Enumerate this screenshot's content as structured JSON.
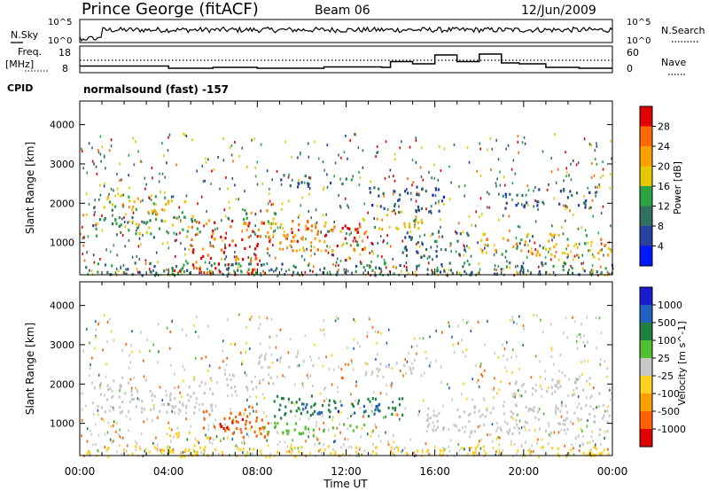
{
  "header": {
    "title": "Prince George (fitACF)",
    "beam": "Beam 06",
    "date": "12/Jun/2009"
  },
  "labels": {
    "nsky": "N.Sky",
    "nsearch": "N.Search",
    "freq": "Freq.",
    "mhz": "[MHz]",
    "nave": "Nave",
    "cpid": "CPID",
    "mode": "normalsound (fast) -157"
  },
  "ticks": {
    "nsky_top": "10^5",
    "nsky_bot": "10^0",
    "nsearch_top": "10^5",
    "nsearch_bot": "10^0",
    "freq_top": "18",
    "freq_bot": "8",
    "nave_top": "60",
    "nave_bot": "0"
  },
  "chart_data": [
    {
      "type": "line",
      "panel": "noise",
      "series": [
        {
          "name": "N.Sky",
          "style": "solid",
          "level": 0.55
        },
        {
          "name": "N.Search",
          "style": "dotted",
          "level": 0.1
        }
      ]
    },
    {
      "type": "line",
      "panel": "frequency",
      "ylim_freq": [
        8,
        18
      ],
      "ylim_nave": [
        0,
        60
      ],
      "series": [
        {
          "name": "Freq. [MHz]",
          "style": "dotted",
          "x": [
            0,
            24
          ],
          "y": [
            12.2,
            12.2
          ]
        },
        {
          "name": "Nave",
          "style": "solid",
          "x": [
            0,
            1,
            4,
            6,
            8,
            11,
            13.6,
            14,
            15,
            16,
            17,
            18,
            19,
            19.8,
            21,
            22.5,
            24
          ],
          "y": [
            15,
            15,
            10,
            12,
            10,
            13,
            12,
            25,
            20,
            40,
            25,
            42,
            22,
            20,
            12,
            10,
            10
          ]
        }
      ]
    },
    {
      "type": "heatmap",
      "title": "",
      "xlabel": "Time UT",
      "ylabel": "Slant Range [km]",
      "xlim": [
        0,
        24
      ],
      "ylim": [
        180,
        4600
      ],
      "x_ticks": [
        "00:00",
        "04:00",
        "08:00",
        "12:00",
        "16:00",
        "20:00",
        "00:00"
      ],
      "y_ticks": [
        1000,
        2000,
        3000,
        4000
      ],
      "colorbar": {
        "label": "Power [dB]",
        "ticks": [
          "28",
          "24",
          "20",
          "16",
          "12",
          "8",
          "4"
        ],
        "colors": [
          "#e00000",
          "#ff6a00",
          "#ffa000",
          "#e5c800",
          "#2aa542",
          "#2f7060",
          "#2840a0",
          "#0018ff"
        ]
      },
      "regions": [
        {
          "t0": 0.2,
          "t1": 24,
          "r0": 180,
          "r1": 520,
          "value": 12
        },
        {
          "t0": 0.5,
          "t1": 5.5,
          "r0": 1150,
          "r1": 1700,
          "value": 14
        },
        {
          "t0": 1.0,
          "t1": 5.0,
          "r0": 1750,
          "r1": 2250,
          "value": 18
        },
        {
          "t0": 5.0,
          "t1": 8.0,
          "r0": 200,
          "r1": 1600,
          "value": 27
        },
        {
          "t0": 7.0,
          "t1": 9.0,
          "r0": 1450,
          "r1": 1900,
          "value": 15
        },
        {
          "t0": 8.0,
          "t1": 13.5,
          "r0": 800,
          "r1": 1600,
          "value": 22
        },
        {
          "t0": 9.5,
          "t1": 12.5,
          "r0": 1150,
          "r1": 1450,
          "value": 27
        },
        {
          "t0": 12.5,
          "t1": 15.5,
          "r0": 1350,
          "r1": 1850,
          "value": 18
        },
        {
          "t0": 14.5,
          "t1": 17.5,
          "r0": 600,
          "r1": 1300,
          "value": 10
        },
        {
          "t0": 18.0,
          "t1": 24.0,
          "r0": 650,
          "r1": 1250,
          "value": 18
        },
        {
          "t0": 9.0,
          "t1": 12.0,
          "r0": 2450,
          "r1": 2750,
          "value": 10
        },
        {
          "t0": 13.0,
          "t1": 16.5,
          "r0": 1800,
          "r1": 2450,
          "value": 9
        },
        {
          "t0": 19.0,
          "t1": 23.0,
          "r0": 1900,
          "r1": 2400,
          "value": 10
        }
      ]
    },
    {
      "type": "heatmap",
      "title": "",
      "xlabel": "Time UT",
      "ylabel": "Slant Range [km]",
      "xlim": [
        0,
        24
      ],
      "ylim": [
        180,
        4600
      ],
      "x_ticks": [
        "00:00",
        "04:00",
        "08:00",
        "12:00",
        "16:00",
        "20:00",
        "00:00"
      ],
      "y_ticks": [
        1000,
        2000,
        3000,
        4000
      ],
      "colorbar": {
        "label": "Velocity [m s^-1]",
        "ticks": [
          "1000",
          "500",
          "100",
          "25",
          "-25",
          "-100",
          "-500",
          "-1000"
        ],
        "colors": [
          "#1a1ad0",
          "#2060c0",
          "#208040",
          "#50c030",
          "#c8c8c8",
          "#ffd020",
          "#ffa000",
          "#ff6000",
          "#e00000"
        ]
      },
      "regions": [
        {
          "t0": 0.5,
          "t1": 6.0,
          "r0": 1300,
          "r1": 2200,
          "value": 0
        },
        {
          "t0": 6.5,
          "t1": 8.8,
          "r0": 1800,
          "r1": 2300,
          "value": 0
        },
        {
          "t0": 8.0,
          "t1": 10.5,
          "r0": 2450,
          "r1": 2800,
          "value": 0
        },
        {
          "t0": 12.5,
          "t1": 15.0,
          "r0": 2200,
          "r1": 2600,
          "value": 0
        },
        {
          "t0": 15.5,
          "t1": 24.0,
          "r0": 700,
          "r1": 1500,
          "value": 0
        },
        {
          "t0": 19.5,
          "t1": 23.5,
          "r0": 1700,
          "r1": 2200,
          "value": 0
        },
        {
          "t0": 4.0,
          "t1": 6.0,
          "r0": 200,
          "r1": 800,
          "value": -60
        },
        {
          "t0": 5.5,
          "t1": 8.5,
          "r0": 600,
          "r1": 1400,
          "value": -400
        },
        {
          "t0": 6.0,
          "t1": 7.5,
          "r0": 900,
          "r1": 1300,
          "value": -700
        },
        {
          "t0": 8.5,
          "t1": 14.5,
          "r0": 1150,
          "r1": 1750,
          "value": 200
        },
        {
          "t0": 10.0,
          "t1": 13.5,
          "r0": 1250,
          "r1": 1550,
          "value": 700
        },
        {
          "t0": 8.0,
          "t1": 13.0,
          "r0": 700,
          "r1": 1050,
          "value": 60
        },
        {
          "t0": 0.2,
          "t1": 24.0,
          "r0": 180,
          "r1": 450,
          "value": -40
        }
      ]
    }
  ]
}
